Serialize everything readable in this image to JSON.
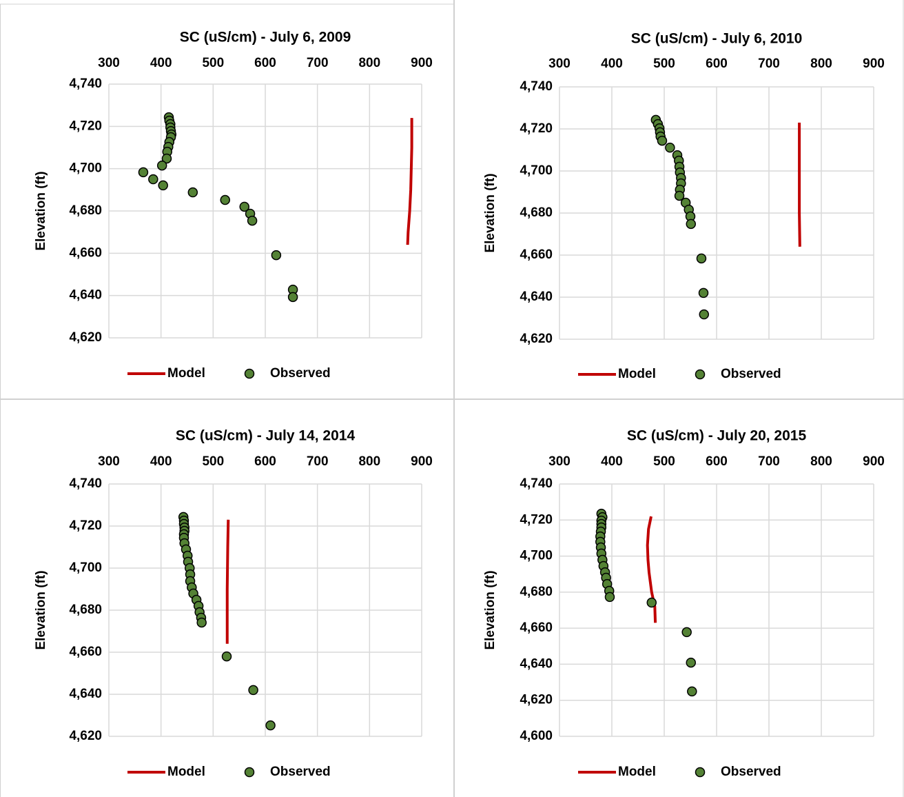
{
  "chart_data": [
    {
      "type": "scatter",
      "title": "SC (uS/cm) - July 6, 2009",
      "y_label": "Elevation (ft)",
      "x_axis_position": "top",
      "grid": true,
      "xlim": [
        300,
        900
      ],
      "xticks": [
        300,
        400,
        500,
        600,
        700,
        800,
        900
      ],
      "ylim": [
        4620,
        4740
      ],
      "yticks": [
        {
          "value": 4620,
          "label": "4,620"
        },
        {
          "value": 4640,
          "label": "4,640"
        },
        {
          "value": 4660,
          "label": "4,660"
        },
        {
          "value": 4680,
          "label": "4,680"
        },
        {
          "value": 4700,
          "label": "4,700"
        },
        {
          "value": 4720,
          "label": "4,720"
        },
        {
          "value": 4740,
          "label": "4,740"
        }
      ],
      "series": [
        {
          "name": "Model",
          "mode": "line",
          "color": "#c00000",
          "x": [
            881,
            881,
            880,
            879,
            877,
            874,
            873
          ],
          "values": [
            4724,
            4710,
            4700,
            4690,
            4680,
            4670,
            4664
          ]
        },
        {
          "name": "Observed",
          "mode": "marker",
          "color": "#548235",
          "edgecolor": "#000000",
          "x": [
            415,
            416,
            418,
            418,
            419,
            420,
            419,
            416,
            414,
            412,
            411,
            402,
            366,
            385,
            404,
            461,
            523,
            560,
            571,
            575,
            621,
            653,
            653
          ],
          "values": [
            4724.3,
            4722.7,
            4721.1,
            4719.5,
            4717.8,
            4716.2,
            4714.9,
            4712.6,
            4710.3,
            4708,
            4704.8,
            4701.5,
            4698.3,
            4695,
            4692.1,
            4688.8,
            4685.2,
            4682,
            4678.7,
            4675.4,
            4659.1,
            4642.8,
            4639.3
          ]
        }
      ]
    },
    {
      "type": "scatter",
      "title": "SC (uS/cm) - July 6, 2010",
      "y_label": "Elevation (ft)",
      "x_axis_position": "top",
      "grid": true,
      "xlim": [
        300,
        900
      ],
      "xticks": [
        300,
        400,
        500,
        600,
        700,
        800,
        900
      ],
      "ylim": [
        4620,
        4740
      ],
      "yticks": [
        {
          "value": 4620,
          "label": "4,620"
        },
        {
          "value": 4640,
          "label": "4,640"
        },
        {
          "value": 4660,
          "label": "4,660"
        },
        {
          "value": 4680,
          "label": "4,680"
        },
        {
          "value": 4700,
          "label": "4,700"
        },
        {
          "value": 4720,
          "label": "4,720"
        },
        {
          "value": 4740,
          "label": "4,740"
        }
      ],
      "series": [
        {
          "name": "Model",
          "mode": "line",
          "color": "#c00000",
          "x": [
            758,
            758,
            758,
            759
          ],
          "values": [
            4723,
            4700,
            4680,
            4664
          ]
        },
        {
          "name": "Observed",
          "mode": "marker",
          "color": "#548235",
          "edgecolor": "#000000",
          "x": [
            484,
            488,
            491,
            492,
            493,
            496,
            511,
            525,
            528,
            529,
            530,
            532,
            532,
            530,
            529,
            541,
            547,
            550,
            551,
            571,
            575,
            576
          ],
          "values": [
            4724.3,
            4722.3,
            4720.3,
            4718.4,
            4716.4,
            4714.4,
            4711.1,
            4707.5,
            4704.9,
            4702,
            4699.3,
            4696.7,
            4694.1,
            4691.1,
            4688.2,
            4684.9,
            4681.6,
            4678.4,
            4674.8,
            4658.4,
            4642,
            4631.8
          ]
        }
      ]
    },
    {
      "type": "scatter",
      "title": "SC (uS/cm) - July 14, 2014",
      "y_label": "Elevation (ft)",
      "x_axis_position": "top",
      "grid": true,
      "xlim": [
        300,
        900
      ],
      "xticks": [
        300,
        400,
        500,
        600,
        700,
        800,
        900
      ],
      "ylim": [
        4620,
        4740
      ],
      "yticks": [
        {
          "value": 4620,
          "label": "4,620"
        },
        {
          "value": 4640,
          "label": "4,640"
        },
        {
          "value": 4660,
          "label": "4,660"
        },
        {
          "value": 4680,
          "label": "4,680"
        },
        {
          "value": 4700,
          "label": "4,700"
        },
        {
          "value": 4720,
          "label": "4,720"
        },
        {
          "value": 4740,
          "label": "4,740"
        }
      ],
      "series": [
        {
          "name": "Model",
          "mode": "line",
          "color": "#c00000",
          "x": [
            529,
            528,
            527,
            527
          ],
          "values": [
            4723,
            4710,
            4690,
            4664
          ]
        },
        {
          "name": "Observed",
          "mode": "marker",
          "color": "#548235",
          "edgecolor": "#000000",
          "x": [
            443,
            444,
            444,
            445,
            445,
            444,
            444,
            445,
            448,
            451,
            452,
            455,
            456,
            456,
            459,
            462,
            468,
            472,
            474,
            477,
            478,
            526,
            577,
            610
          ],
          "values": [
            4724.3,
            4722.6,
            4721,
            4719.3,
            4717.7,
            4716.1,
            4714.4,
            4711.8,
            4708.9,
            4705.9,
            4703,
            4700,
            4697,
            4693.8,
            4690.8,
            4687.9,
            4684.9,
            4682,
            4679,
            4676.4,
            4674.1,
            4658,
            4642,
            4625.2
          ]
        }
      ]
    },
    {
      "type": "scatter",
      "title": "SC (uS/cm) - July 20, 2015",
      "y_label": "Elevation (ft)",
      "x_axis_position": "top",
      "grid": true,
      "xlim": [
        300,
        900
      ],
      "xticks": [
        300,
        400,
        500,
        600,
        700,
        800,
        900
      ],
      "ylim": [
        4600,
        4740
      ],
      "yticks": [
        {
          "value": 4600,
          "label": "4,600"
        },
        {
          "value": 4620,
          "label": "4,620"
        },
        {
          "value": 4640,
          "label": "4,640"
        },
        {
          "value": 4660,
          "label": "4,660"
        },
        {
          "value": 4680,
          "label": "4,680"
        },
        {
          "value": 4700,
          "label": "4,700"
        },
        {
          "value": 4720,
          "label": "4,720"
        },
        {
          "value": 4740,
          "label": "4,740"
        }
      ],
      "series": [
        {
          "name": "Model",
          "mode": "line",
          "color": "#c00000",
          "x": [
            475,
            470,
            468,
            469,
            471,
            476,
            482,
            483
          ],
          "values": [
            4722,
            4715,
            4706,
            4698,
            4691,
            4680,
            4672,
            4663
          ]
        },
        {
          "name": "Observed",
          "mode": "marker",
          "color": "#548235",
          "edgecolor": "#000000",
          "x": [
            380,
            382,
            380,
            380,
            380,
            379,
            378,
            378,
            379,
            380,
            382,
            384,
            387,
            389,
            391,
            395,
            396,
            476,
            543,
            551,
            553
          ],
          "values": [
            4723.5,
            4721.6,
            4719.7,
            4717.8,
            4715.9,
            4713.6,
            4710.9,
            4707.9,
            4704.8,
            4701.4,
            4697.9,
            4694.5,
            4691,
            4688,
            4684.5,
            4680.7,
            4677.3,
            4674.2,
            4657.8,
            4640.9,
            4624.9
          ]
        }
      ]
    }
  ]
}
